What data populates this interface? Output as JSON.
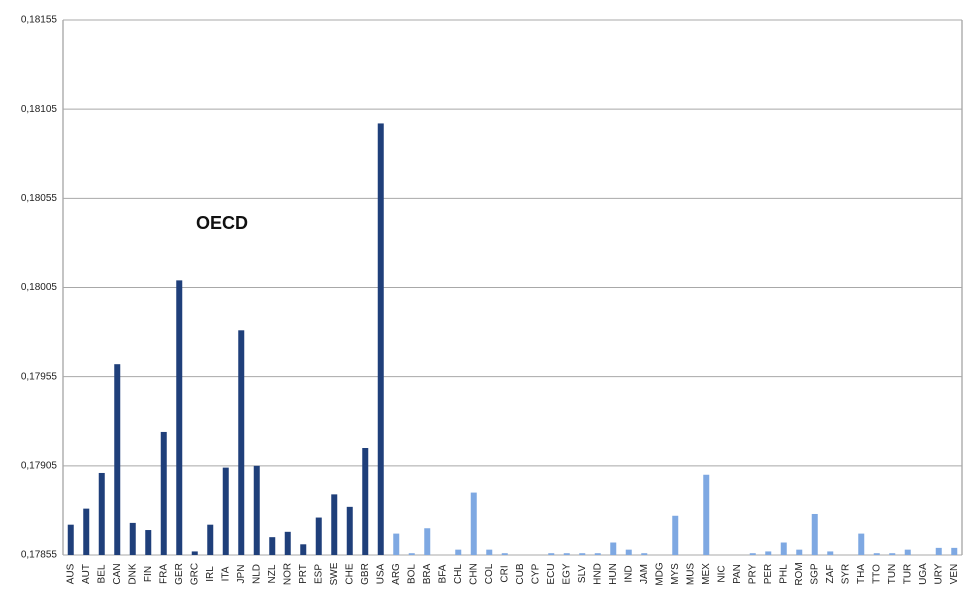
{
  "chart_data": {
    "type": "bar",
    "annotation": "OECD",
    "categories": [
      "AUS",
      "AUT",
      "BEL",
      "CAN",
      "DNK",
      "FIN",
      "FRA",
      "GER",
      "GRC",
      "IRL",
      "ITA",
      "JPN",
      "NLD",
      "NZL",
      "NOR",
      "PRT",
      "ESP",
      "SWE",
      "CHE",
      "GBR",
      "USA",
      "ARG",
      "BOL",
      "BRA",
      "BFA",
      "CHL",
      "CHN",
      "COL",
      "CRI",
      "CUB",
      "CYP",
      "ECU",
      "EGY",
      "SLV",
      "HND",
      "HUN",
      "IND",
      "JAM",
      "MDG",
      "MYS",
      "MUS",
      "MEX",
      "NIC",
      "PAN",
      "PRY",
      "PER",
      "PHL",
      "ROM",
      "SGP",
      "ZAF",
      "SYR",
      "THA",
      "TTO",
      "TUN",
      "TUR",
      "UGA",
      "URY",
      "VEN"
    ],
    "values": [
      0.17872,
      0.17881,
      0.17901,
      0.17962,
      0.17873,
      0.17869,
      0.17924,
      0.18009,
      0.17857,
      0.17872,
      0.17904,
      0.17981,
      0.17905,
      0.17865,
      0.17868,
      0.17861,
      0.17876,
      0.17889,
      0.17882,
      0.17915,
      0.18097,
      0.17867,
      0.17856,
      0.1787,
      0.17855,
      0.17858,
      0.1789,
      0.17858,
      0.17856,
      0.17855,
      0.17855,
      0.17856,
      0.17856,
      0.17856,
      0.17856,
      0.17862,
      0.17858,
      0.17856,
      0.17855,
      0.17877,
      0.17855,
      0.179,
      0.17855,
      0.17855,
      0.17856,
      0.17857,
      0.17862,
      0.17858,
      0.17878,
      0.17857,
      0.17855,
      0.17867,
      0.17856,
      0.17856,
      0.17858,
      0.17855,
      0.17859,
      0.17859
    ],
    "colors": [
      "#1f3f7a",
      "#1f3f7a",
      "#1f3f7a",
      "#1f3f7a",
      "#1f3f7a",
      "#1f3f7a",
      "#1f3f7a",
      "#1f3f7a",
      "#1f3f7a",
      "#1f3f7a",
      "#1f3f7a",
      "#1f3f7a",
      "#1f3f7a",
      "#1f3f7a",
      "#1f3f7a",
      "#1f3f7a",
      "#1f3f7a",
      "#1f3f7a",
      "#1f3f7a",
      "#1f3f7a",
      "#1f3f7a",
      "#7ea8e2",
      "#7ea8e2",
      "#7ea8e2",
      "#7ea8e2",
      "#7ea8e2",
      "#7ea8e2",
      "#7ea8e2",
      "#7ea8e2",
      "#7ea8e2",
      "#7ea8e2",
      "#7ea8e2",
      "#7ea8e2",
      "#7ea8e2",
      "#7ea8e2",
      "#7ea8e2",
      "#7ea8e2",
      "#7ea8e2",
      "#7ea8e2",
      "#7ea8e2",
      "#7ea8e2",
      "#7ea8e2",
      "#7ea8e2",
      "#7ea8e2",
      "#7ea8e2",
      "#7ea8e2",
      "#7ea8e2",
      "#7ea8e2",
      "#7ea8e2",
      "#7ea8e2",
      "#7ea8e2",
      "#7ea8e2",
      "#7ea8e2",
      "#7ea8e2",
      "#7ea8e2",
      "#7ea8e2",
      "#7ea8e2",
      "#7ea8e2"
    ],
    "ylim": [
      0.17855,
      0.18155
    ],
    "yticks": [
      {
        "value": 0.17855,
        "label": "0,17855"
      },
      {
        "value": 0.17905,
        "label": "0,17905"
      },
      {
        "value": 0.17955,
        "label": "0,17955"
      },
      {
        "value": 0.18005,
        "label": "0,18005"
      },
      {
        "value": 0.18055,
        "label": "0,18055"
      },
      {
        "value": 0.18105,
        "label": "0,18105"
      },
      {
        "value": 0.18155,
        "label": "0,18155"
      }
    ],
    "grid": true
  }
}
